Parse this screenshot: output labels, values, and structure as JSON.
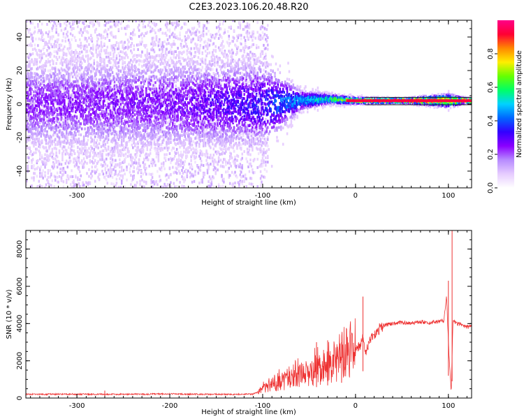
{
  "chart_data": [
    {
      "type": "heatmap",
      "title": "C2E3.2023.106.20.48.R20",
      "xlabel": "Height of straight line (km)",
      "ylabel": "Frequency (Hz)",
      "xlim": [
        -355,
        125
      ],
      "ylim": [
        -50,
        50
      ],
      "xticks": [
        -300,
        -200,
        -100,
        0,
        100
      ],
      "yticks": [
        -40,
        -20,
        0,
        20,
        40
      ],
      "colorbar": {
        "label": "Normalized spectral amplitude",
        "range": [
          0,
          1
        ],
        "ticks": [
          0.0,
          0.2,
          0.4,
          0.6,
          0.8
        ],
        "colors": [
          "#ffffff",
          "#e6ccff",
          "#b78bff",
          "#8a00ff",
          "#3300ff",
          "#0066ff",
          "#00d2ff",
          "#00ff66",
          "#66ff00",
          "#ffee00",
          "#ff8800",
          "#ff0033",
          "#ff0088"
        ]
      },
      "description_points": [
        {
          "height": -340,
          "center_hz": 0,
          "spread_hz": 50,
          "peak_amp": 0.25
        },
        {
          "height": -200,
          "center_hz": 0,
          "spread_hz": 50,
          "peak_amp": 0.27
        },
        {
          "height": -100,
          "center_hz": 0,
          "spread_hz": 45,
          "peak_amp": 0.35
        },
        {
          "height": -60,
          "center_hz": 2,
          "spread_hz": 10,
          "peak_amp": 0.5
        },
        {
          "height": -30,
          "center_hz": 3,
          "spread_hz": 5,
          "peak_amp": 0.6
        },
        {
          "height": 0,
          "center_hz": 2,
          "spread_hz": 3,
          "peak_amp": 0.8
        },
        {
          "height": 50,
          "center_hz": 2,
          "spread_hz": 2,
          "peak_amp": 0.95
        },
        {
          "height": 100,
          "center_hz": 2,
          "spread_hz": 6,
          "peak_amp": 0.9
        },
        {
          "height": 120,
          "center_hz": 2,
          "spread_hz": 2,
          "peak_amp": 0.95
        }
      ]
    },
    {
      "type": "line",
      "xlabel": "Height of straight line (km)",
      "ylabel": "SNR (10 * v/v)",
      "xlim": [
        -355,
        125
      ],
      "ylim": [
        0,
        9000
      ],
      "xticks": [
        -300,
        -200,
        -100,
        0,
        100
      ],
      "yticks": [
        0,
        2000,
        4000,
        6000,
        8000
      ],
      "series": [
        {
          "name": "SNR",
          "color": "#ee3333",
          "x": [
            -355,
            -300,
            -250,
            -200,
            -150,
            -110,
            -100,
            -90,
            -80,
            -70,
            -60,
            -50,
            -40,
            -30,
            -20,
            -10,
            0,
            5,
            8,
            10,
            15,
            20,
            25,
            30,
            40,
            50,
            60,
            70,
            80,
            90,
            95,
            98,
            100,
            103,
            105,
            108,
            110,
            115,
            120,
            125
          ],
          "y": [
            200,
            210,
            200,
            220,
            200,
            210,
            450,
            700,
            900,
            1000,
            1200,
            1350,
            1500,
            1700,
            1900,
            2200,
            2500,
            2800,
            3600,
            2300,
            3000,
            3400,
            3700,
            3900,
            4000,
            4050,
            4000,
            4100,
            4050,
            4100,
            4150,
            5500,
            3000,
            300,
            4200,
            4000,
            4000,
            3950,
            3800,
            3900
          ]
        }
      ],
      "spikes": [
        {
          "height": -270,
          "snr": 400
        },
        {
          "height": -42,
          "snr": 3000
        },
        {
          "height": -30,
          "snr": 3100
        },
        {
          "height": -15,
          "snr": 3000
        },
        {
          "height": 8,
          "snr": 5450
        },
        {
          "height": 100,
          "snr": 6300
        },
        {
          "height": 104,
          "snr": 9000
        }
      ]
    }
  ]
}
